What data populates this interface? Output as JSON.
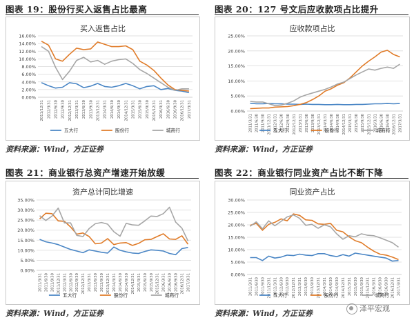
{
  "panels": [
    {
      "fig_title": "图表 19：股份行买入返售占比最高",
      "source": "资料来源：Wind，方正证券"
    },
    {
      "fig_title": "图表 20：127 号文后应收款项占比提升",
      "source": "资料来源：Wind，方正证券"
    },
    {
      "fig_title": "图表 21：商业银行总资产增速开始放缓",
      "source": "资料来源：Wind，方正证券"
    },
    {
      "fig_title": "图表 22：商业银行同业资产占比不断下降",
      "source": "资料来源：Wind，方正证券"
    }
  ],
  "watermark": "泽平宏观",
  "colors": {
    "big5": "#4a86c5",
    "joint": "#e07b28",
    "city": "#a6a6a6",
    "grid": "#d9d9d9"
  },
  "chart_data": [
    {
      "type": "line",
      "title": "买入返售占比",
      "categories": [
        "2011/12/31",
        "2012/3/31",
        "2012/6/30",
        "2012/9/30",
        "2012/12/31",
        "2013/3/31",
        "2013/6/30",
        "2013/9/30",
        "2013/12/31",
        "2014/3/31",
        "2014/6/30",
        "2014/9/30",
        "2014/12/31",
        "2015/3/31",
        "2015/6/30",
        "2015/9/30",
        "2015/12/31",
        "2016/3/31",
        "2016/6/30",
        "2016/9/30",
        "2016/12/31",
        "2017/3/31"
      ],
      "ylim": [
        0,
        16
      ],
      "yticks": [
        "0.00%",
        "2.00%",
        "4.00%",
        "6.00%",
        "8.00%",
        "10.00%",
        "12.00%",
        "14.00%",
        "16.00%"
      ],
      "series": [
        {
          "name": "五大行",
          "color_key": "big5",
          "values": [
            3.8,
            3.0,
            2.4,
            2.6,
            3.8,
            3.5,
            2.5,
            2.9,
            3.6,
            2.8,
            2.6,
            3.0,
            3.6,
            3.0,
            2.2,
            2.8,
            3.0,
            2.0,
            2.3,
            1.8,
            1.6,
            1.2
          ]
        },
        {
          "name": "股份行",
          "color_key": "joint",
          "values": [
            14.6,
            13.6,
            10.0,
            9.4,
            11.2,
            12.8,
            12.4,
            12.6,
            14.4,
            13.8,
            13.2,
            13.2,
            13.4,
            12.4,
            9.4,
            8.4,
            7.0,
            5.0,
            3.2,
            2.0,
            1.8,
            1.6
          ]
        },
        {
          "name": "城商行",
          "color_key": "city",
          "values": [
            13.2,
            12.0,
            7.8,
            4.6,
            6.8,
            9.6,
            10.4,
            9.2,
            9.6,
            8.6,
            9.4,
            9.8,
            10.0,
            8.8,
            7.2,
            6.2,
            5.0,
            3.8,
            2.6,
            1.8,
            2.2,
            2.2
          ]
        }
      ]
    },
    {
      "type": "line",
      "title": "应收款项占比",
      "categories": [
        "2011/3/31",
        "2011/6/30",
        "2011/9/30",
        "2011/12/31",
        "2012/3/31",
        "2012/6/30",
        "2012/9/30",
        "2012/12/31",
        "2013/3/31",
        "2013/6/30",
        "2013/9/30",
        "2013/12/31",
        "2014/3/31",
        "2014/6/30",
        "2014/9/30",
        "2014/12/31",
        "2015/3/31",
        "2015/6/30",
        "2015/9/30",
        "2015/12/31",
        "2016/3/31",
        "2016/6/30",
        "2016/9/30",
        "2016/12/31",
        "2017/3/31"
      ],
      "ylim": [
        0,
        25
      ],
      "yticks": [
        "0.00%",
        "5.00%",
        "10.00%",
        "15.00%",
        "20.00%",
        "25.00%"
      ],
      "series": [
        {
          "name": "五大行",
          "color_key": "big5",
          "values": [
            2.6,
            2.4,
            2.4,
            2.5,
            2.4,
            2.4,
            2.3,
            2.3,
            2.2,
            2.3,
            2.2,
            2.2,
            2.1,
            2.1,
            2.2,
            2.1,
            2.1,
            2.2,
            2.2,
            2.3,
            2.4,
            2.4,
            2.5,
            2.4,
            2.5
          ]
        },
        {
          "name": "股份行",
          "color_key": "joint",
          "values": [
            0.8,
            0.9,
            1.0,
            1.0,
            1.3,
            1.4,
            1.5,
            1.8,
            2.2,
            2.8,
            3.8,
            5.0,
            6.6,
            7.4,
            8.6,
            9.4,
            11.0,
            13.0,
            15.0,
            16.6,
            18.0,
            19.6,
            20.2,
            18.8,
            18.0
          ]
        },
        {
          "name": "城商行",
          "color_key": "city",
          "values": [
            3.2,
            3.0,
            3.0,
            2.4,
            1.8,
            2.0,
            2.6,
            3.4,
            4.6,
            5.4,
            6.0,
            6.6,
            7.2,
            8.0,
            9.0,
            9.6,
            10.8,
            12.0,
            13.0,
            14.0,
            13.6,
            14.2,
            14.6,
            14.2,
            15.6
          ]
        }
      ]
    },
    {
      "type": "line",
      "title": "资产总计同比增速",
      "categories": [
        "2011/3/31",
        "2011/6/30",
        "2011/9/30",
        "2011/12/31",
        "2012/3/31",
        "2012/6/30",
        "2012/9/30",
        "2012/12/31",
        "2013/3/31",
        "2013/6/30",
        "2013/9/30",
        "2013/12/31",
        "2014/3/31",
        "2014/6/30",
        "2014/9/30",
        "2014/12/31",
        "2015/3/31",
        "2015/6/30",
        "2015/9/30",
        "2015/12/31",
        "2016/3/31",
        "2016/6/30",
        "2016/9/30",
        "2016/12/31",
        "2017/3/31"
      ],
      "ylim": [
        0,
        35
      ],
      "yticks": [
        "0.00%",
        "5.00%",
        "10.00%",
        "15.00%",
        "20.00%",
        "25.00%",
        "30.00%",
        "35.00%"
      ],
      "series": [
        {
          "name": "五大行",
          "color_key": "big5",
          "values": [
            15.4,
            14.2,
            13.6,
            12.8,
            11.6,
            10.4,
            9.6,
            8.8,
            10.2,
            9.6,
            9.0,
            8.6,
            11.6,
            10.0,
            9.2,
            8.6,
            8.4,
            9.4,
            10.2,
            10.0,
            9.6,
            8.4,
            7.8,
            10.8,
            11.4
          ]
        },
        {
          "name": "股份行",
          "color_key": "joint",
          "values": [
            25.6,
            28.4,
            28.2,
            24.6,
            24.4,
            21.6,
            18.0,
            18.6,
            16.8,
            13.2,
            13.6,
            15.8,
            12.8,
            13.6,
            13.8,
            12.4,
            13.4,
            15.2,
            15.4,
            16.8,
            18.2,
            15.6,
            15.4,
            17.2,
            13.0
          ]
        },
        {
          "name": "城商行",
          "color_key": "city",
          "values": [
            27.2,
            24.8,
            27.0,
            31.0,
            23.6,
            23.6,
            17.4,
            16.8,
            20.8,
            23.2,
            23.8,
            23.0,
            19.2,
            17.0,
            23.4,
            22.6,
            22.4,
            24.6,
            27.0,
            26.8,
            28.2,
            31.4,
            24.0,
            21.0,
            14.6
          ]
        }
      ]
    },
    {
      "type": "line",
      "title": "同业资产占比",
      "categories": [
        "2011/3/31",
        "2011/6/30",
        "2011/9/30",
        "2011/12/31",
        "2012/3/31",
        "2012/6/30",
        "2012/9/30",
        "2012/12/31",
        "2013/3/31",
        "2013/6/30",
        "2013/9/30",
        "2013/12/31",
        "2014/3/31",
        "2014/6/30",
        "2014/9/30",
        "2014/12/31",
        "2015/3/31",
        "2015/6/30",
        "2015/9/30",
        "2015/12/31",
        "2016/3/31",
        "2016/6/30",
        "2016/9/30",
        "2016/12/31",
        "2017/3/31"
      ],
      "ylim": [
        0,
        30
      ],
      "yticks": [
        "0.00%",
        "5.00%",
        "10.00%",
        "15.00%",
        "20.00%",
        "25.00%",
        "30.00%"
      ],
      "series": [
        {
          "name": "五大行",
          "color_key": "big5",
          "values": [
            6.8,
            6.8,
            5.6,
            7.4,
            6.6,
            7.0,
            7.8,
            7.6,
            8.2,
            7.8,
            7.6,
            8.4,
            8.4,
            7.6,
            7.2,
            8.0,
            7.4,
            8.6,
            8.2,
            7.8,
            7.4,
            7.0,
            6.6,
            5.4,
            5.6
          ]
        },
        {
          "name": "股份行",
          "color_key": "joint",
          "values": [
            19.8,
            20.6,
            17.8,
            20.2,
            21.0,
            22.4,
            21.6,
            24.4,
            23.8,
            22.0,
            21.8,
            20.4,
            20.2,
            20.6,
            17.8,
            17.2,
            15.2,
            13.6,
            12.8,
            11.0,
            9.4,
            8.2,
            7.8,
            7.0,
            6.0
          ]
        },
        {
          "name": "城商行",
          "color_key": "city",
          "values": [
            19.4,
            21.2,
            18.4,
            21.6,
            19.6,
            21.4,
            23.2,
            24.0,
            22.6,
            19.8,
            20.2,
            18.6,
            20.0,
            19.2,
            16.4,
            14.2,
            15.6,
            15.2,
            16.4,
            15.8,
            15.6,
            14.8,
            13.8,
            12.8,
            11.0
          ]
        }
      ]
    }
  ]
}
